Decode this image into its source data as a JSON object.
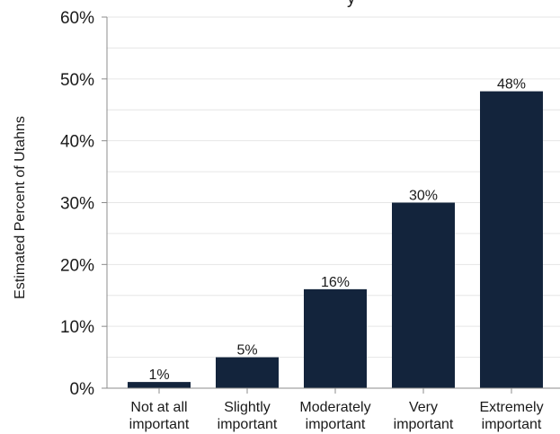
{
  "chart_data": {
    "type": "bar",
    "title_visible_fragment": "y",
    "ylabel": "Estimated Percent of Utahns",
    "xlabel": "",
    "categories": [
      [
        "Not at all",
        "important"
      ],
      [
        "Slightly",
        "important"
      ],
      [
        "Moderately",
        "important"
      ],
      [
        "Very",
        "important"
      ],
      [
        "Extremely",
        "important"
      ]
    ],
    "values": [
      1,
      5,
      16,
      30,
      48
    ],
    "data_labels": [
      "1%",
      "5%",
      "16%",
      "30%",
      "48%"
    ],
    "ylim": [
      0,
      60
    ],
    "y_ticks": [
      0,
      10,
      20,
      30,
      40,
      50,
      60
    ],
    "y_tick_labels": [
      "0%",
      "10%",
      "20%",
      "30%",
      "40%",
      "50%",
      "60%"
    ],
    "grid": true,
    "legend": "none",
    "bar_color": "#13243c",
    "grid_color": "#e6e6e6"
  }
}
